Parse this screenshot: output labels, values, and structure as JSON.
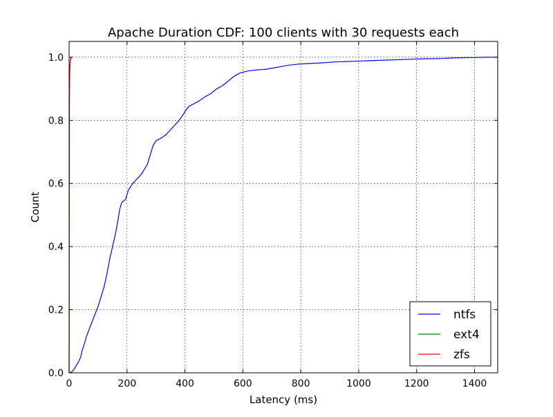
{
  "chart_data": {
    "type": "line",
    "title": "Apache Duration CDF: 100 clients with 30 requests each",
    "xlabel": "Latency (ms)",
    "ylabel": "Count",
    "xlim": [
      0,
      1480
    ],
    "ylim": [
      0,
      1.05
    ],
    "xticks": [
      0,
      200,
      400,
      600,
      800,
      1000,
      1200,
      1400
    ],
    "yticks": [
      0.0,
      0.2,
      0.4,
      0.6,
      0.8,
      1.0
    ],
    "xtick_labels": [
      "0",
      "200",
      "400",
      "600",
      "800",
      "1000",
      "1200",
      "1400"
    ],
    "ytick_labels": [
      "0.0",
      "0.2",
      "0.4",
      "0.6",
      "0.8",
      "1.0"
    ],
    "grid": true,
    "grid_style": "dotted",
    "legend_position": "lower-right",
    "series": [
      {
        "name": "ntfs",
        "color": "#0000ff",
        "x": [
          0,
          8,
          12,
          18,
          22,
          30,
          40,
          45,
          52,
          60,
          70,
          85,
          100,
          110,
          120,
          130,
          140,
          150,
          160,
          170,
          175,
          182,
          195,
          205,
          220,
          230,
          240,
          250,
          260,
          270,
          280,
          290,
          300,
          310,
          320,
          335,
          350,
          365,
          380,
          395,
          405,
          415,
          430,
          450,
          470,
          490,
          510,
          530,
          550,
          570,
          590,
          610,
          630,
          650,
          680,
          700,
          730,
          760,
          790,
          830,
          870,
          920,
          980,
          1040,
          1100,
          1160,
          1220,
          1280,
          1340,
          1400,
          1440,
          1480
        ],
        "y": [
          0.0,
          0.002,
          0.006,
          0.012,
          0.02,
          0.03,
          0.05,
          0.07,
          0.09,
          0.115,
          0.14,
          0.175,
          0.21,
          0.24,
          0.27,
          0.31,
          0.36,
          0.4,
          0.44,
          0.49,
          0.52,
          0.54,
          0.55,
          0.58,
          0.6,
          0.61,
          0.62,
          0.63,
          0.645,
          0.66,
          0.69,
          0.72,
          0.735,
          0.74,
          0.745,
          0.755,
          0.77,
          0.785,
          0.8,
          0.82,
          0.835,
          0.845,
          0.852,
          0.862,
          0.875,
          0.885,
          0.9,
          0.91,
          0.925,
          0.94,
          0.95,
          0.955,
          0.958,
          0.96,
          0.962,
          0.965,
          0.97,
          0.975,
          0.978,
          0.98,
          0.982,
          0.985,
          0.987,
          0.989,
          0.991,
          0.993,
          0.995,
          0.996,
          0.998,
          0.999,
          1.0,
          1.0
        ]
      },
      {
        "name": "ext4",
        "color": "#008000",
        "x": [
          0,
          0.5,
          1,
          2,
          3,
          4,
          5,
          6,
          8
        ],
        "y": [
          0.0,
          0.6,
          0.88,
          0.95,
          0.975,
          0.99,
          0.995,
          0.998,
          1.0
        ]
      },
      {
        "name": "zfs",
        "color": "#ff0000",
        "x": [
          0,
          0.5,
          1,
          2,
          3,
          4,
          6,
          9
        ],
        "y": [
          0.0,
          0.55,
          0.85,
          0.94,
          0.97,
          0.985,
          0.995,
          1.0
        ]
      }
    ]
  }
}
